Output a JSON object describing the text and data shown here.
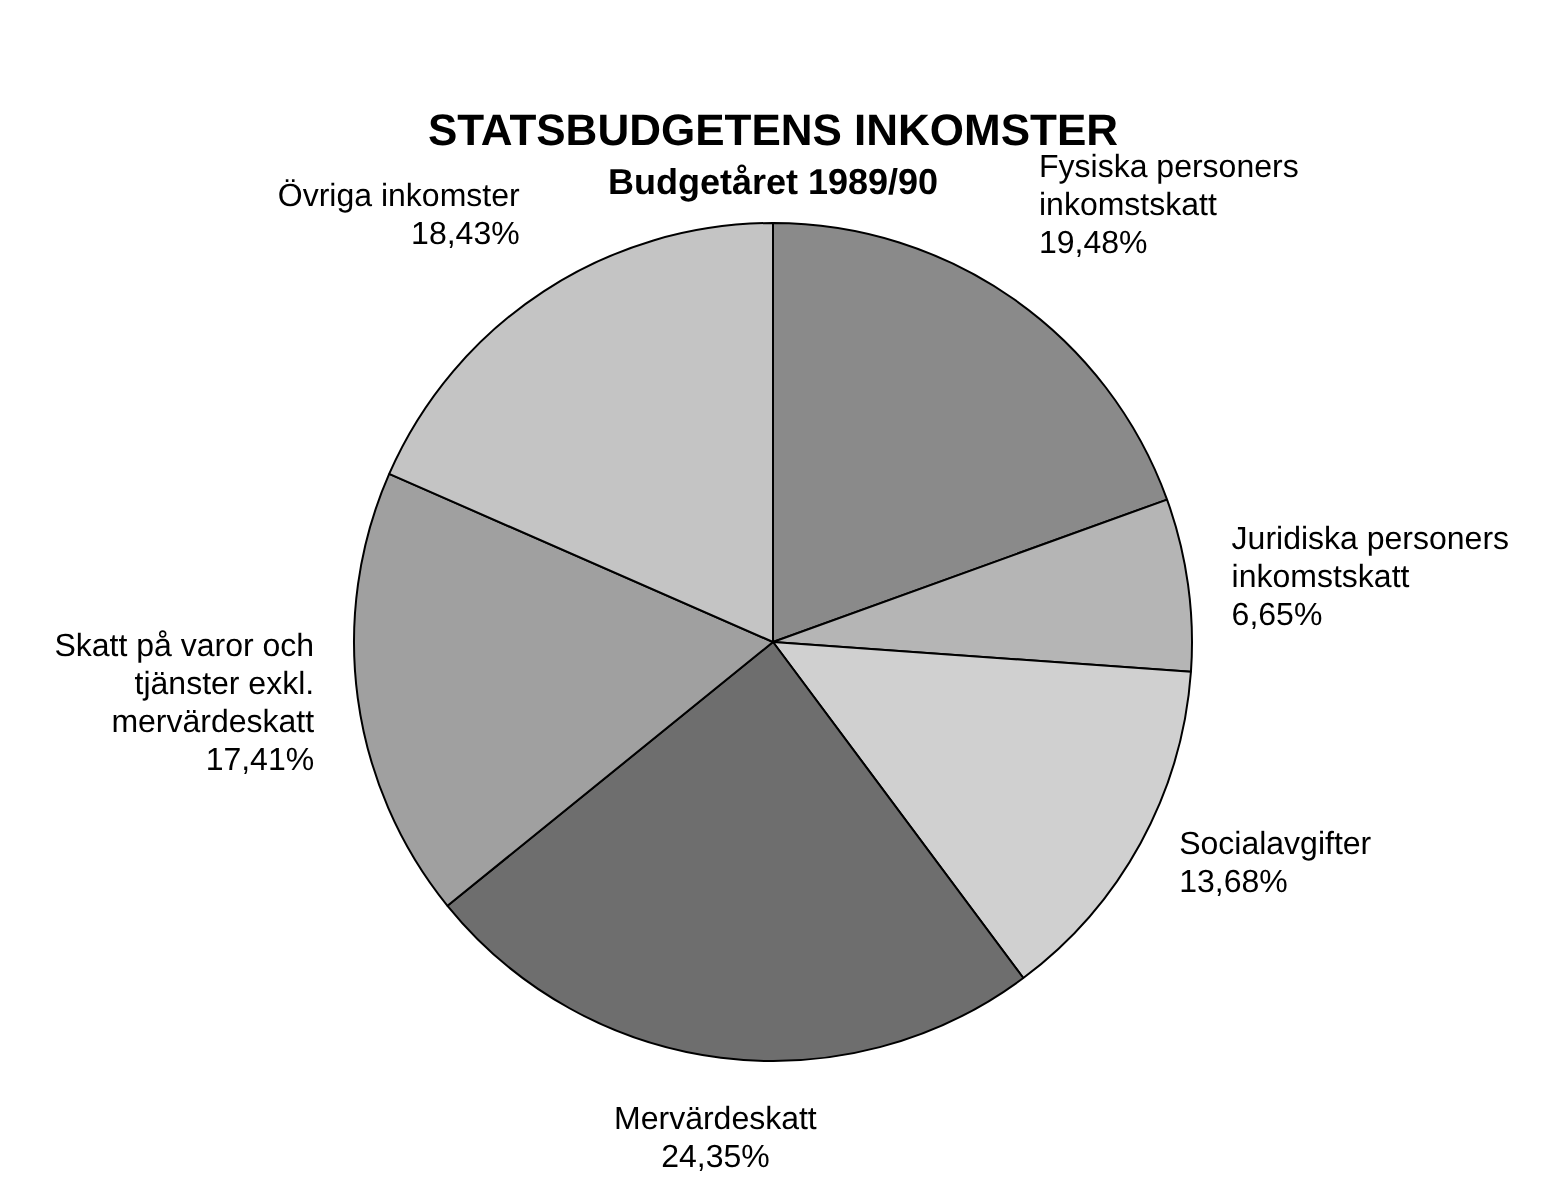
{
  "chart_data": {
    "type": "pie",
    "title": "STATSBUDGETENS INKOMSTER",
    "subtitle": "Budgetåret 1989/90",
    "categories": [
      "Fysiska personers inkomstskatt",
      "Juridiska personers inkomstskatt",
      "Socialavgifter",
      "Mervärdeskatt",
      "Skatt på varor och tjänster exkl. mervärdeskatt",
      "Övriga inkomster"
    ],
    "values": [
      19.48,
      6.65,
      13.68,
      24.35,
      17.41,
      18.43
    ],
    "value_labels": [
      "19,48%",
      "6,65%",
      "13,68%",
      "24,35%",
      "17,41%",
      "18,43%"
    ],
    "colors": [
      "#8a8a8a",
      "#b5b5b5",
      "#d0d0d0",
      "#6e6e6e",
      "#a0a0a0",
      "#c4c4c4"
    ],
    "legend": false
  }
}
